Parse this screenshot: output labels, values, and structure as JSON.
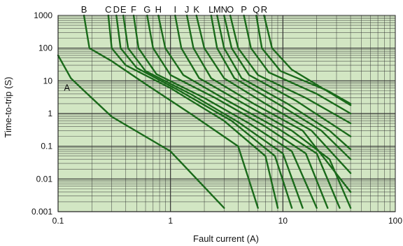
{
  "chart_data": {
    "type": "line",
    "title": "",
    "xlabel": "Fault current (A)",
    "ylabel": "Time-to-trip (S)",
    "xscale": "log",
    "yscale": "log",
    "xlim": [
      0.1,
      100
    ],
    "ylim": [
      0.001,
      1000
    ],
    "grid": true,
    "x_ticks": [
      {
        "value": 0.1,
        "label": "0.1"
      },
      {
        "value": 1,
        "label": "1"
      },
      {
        "value": 10,
        "label": "10"
      },
      {
        "value": 100,
        "label": "100"
      }
    ],
    "y_ticks": [
      {
        "value": 1000,
        "label": "1000"
      },
      {
        "value": 100,
        "label": "100"
      },
      {
        "value": 10,
        "label": "10"
      },
      {
        "value": 1,
        "label": "1"
      },
      {
        "value": 0.1,
        "label": "0.1"
      },
      {
        "value": 0.01,
        "label": "0.01"
      },
      {
        "value": 0.001,
        "label": "0.001"
      }
    ],
    "colors": {
      "plot_background": "#d2e6c3",
      "grid": "#333333",
      "curve": "#1a6a1a"
    },
    "series": [
      {
        "name": "A",
        "points": [
          [
            0.1,
            60
          ],
          [
            0.13,
            12
          ],
          [
            0.17,
            5
          ],
          [
            0.3,
            0.8
          ],
          [
            1.0,
            0.07
          ],
          [
            3.0,
            0.0013
          ]
        ]
      },
      {
        "name": "B",
        "points": [
          [
            0.17,
            1000
          ],
          [
            0.19,
            100
          ],
          [
            0.3,
            40
          ],
          [
            0.6,
            8
          ],
          [
            1.5,
            1
          ],
          [
            4.0,
            0.1
          ],
          [
            6.0,
            0.0013
          ]
        ]
      },
      {
        "name": "C",
        "points": [
          [
            0.28,
            1000
          ],
          [
            0.3,
            100
          ],
          [
            0.4,
            30
          ],
          [
            1.0,
            6
          ],
          [
            3.0,
            0.6
          ],
          [
            7.0,
            0.05
          ],
          [
            9.0,
            0.0013
          ]
        ]
      },
      {
        "name": "D",
        "points": [
          [
            0.33,
            1000
          ],
          [
            0.36,
            100
          ],
          [
            0.5,
            25
          ],
          [
            1.2,
            5
          ],
          [
            3.5,
            0.6
          ],
          [
            8.5,
            0.05
          ],
          [
            12.0,
            0.0013
          ]
        ]
      },
      {
        "name": "E",
        "points": [
          [
            0.38,
            1000
          ],
          [
            0.42,
            100
          ],
          [
            0.6,
            20
          ],
          [
            1.5,
            4
          ],
          [
            4.0,
            0.55
          ],
          [
            10.0,
            0.06
          ],
          [
            15.0,
            0.0013
          ]
        ]
      },
      {
        "name": "F",
        "points": [
          [
            0.47,
            1000
          ],
          [
            0.52,
            100
          ],
          [
            0.75,
            16
          ],
          [
            2.0,
            3
          ],
          [
            5.0,
            0.5
          ],
          [
            12.0,
            0.07
          ],
          [
            20.0,
            0.0013
          ]
        ]
      },
      {
        "name": "G",
        "points": [
          [
            0.62,
            1000
          ],
          [
            0.7,
            100
          ],
          [
            1.0,
            15
          ],
          [
            2.5,
            3
          ],
          [
            7.0,
            0.4
          ],
          [
            16.0,
            0.06
          ],
          [
            25.0,
            0.0013
          ]
        ]
      },
      {
        "name": "H",
        "points": [
          [
            0.78,
            1000
          ],
          [
            0.9,
            100
          ],
          [
            1.3,
            15
          ],
          [
            3.2,
            2.5
          ],
          [
            9.0,
            0.35
          ],
          [
            20.0,
            0.06
          ],
          [
            32.0,
            0.0013
          ]
        ]
      },
      {
        "name": "I",
        "points": [
          [
            1.1,
            1000
          ],
          [
            1.25,
            100
          ],
          [
            1.8,
            12
          ],
          [
            4.5,
            2
          ],
          [
            12.0,
            0.3
          ],
          [
            26.0,
            0.04
          ],
          [
            40.0,
            0.0013
          ]
        ]
      },
      {
        "name": "J",
        "points": [
          [
            1.4,
            1000
          ],
          [
            1.6,
            100
          ],
          [
            2.3,
            12
          ],
          [
            5.5,
            2
          ],
          [
            15.0,
            0.3
          ],
          [
            40.0,
            0.004
          ]
        ]
      },
      {
        "name": "K",
        "points": [
          [
            1.7,
            1000
          ],
          [
            2.0,
            100
          ],
          [
            3.0,
            12
          ],
          [
            7.0,
            2
          ],
          [
            18.0,
            0.3
          ],
          [
            40.0,
            0.015
          ]
        ]
      },
      {
        "name": "L",
        "points": [
          [
            2.3,
            1000
          ],
          [
            2.6,
            100
          ],
          [
            3.7,
            12
          ],
          [
            9.0,
            2
          ],
          [
            22.0,
            0.3
          ],
          [
            40.0,
            0.04
          ]
        ]
      },
      {
        "name": "M",
        "points": [
          [
            2.6,
            1000
          ],
          [
            3.0,
            100
          ],
          [
            4.3,
            12
          ],
          [
            11.0,
            2
          ],
          [
            26.0,
            0.3
          ],
          [
            40.0,
            0.08
          ]
        ]
      },
      {
        "name": "N",
        "points": [
          [
            3.0,
            1000
          ],
          [
            3.5,
            100
          ],
          [
            5.0,
            15
          ],
          [
            13.0,
            2.5
          ],
          [
            40.0,
            0.2
          ]
        ]
      },
      {
        "name": "O",
        "points": [
          [
            3.4,
            1000
          ],
          [
            4.0,
            100
          ],
          [
            6.0,
            15
          ],
          [
            16.0,
            3
          ],
          [
            40.0,
            0.5
          ]
        ]
      },
      {
        "name": "P",
        "points": [
          [
            4.5,
            1000
          ],
          [
            5.2,
            100
          ],
          [
            7.5,
            18
          ],
          [
            20.0,
            4
          ],
          [
            40.0,
            1.0
          ]
        ]
      },
      {
        "name": "Q",
        "points": [
          [
            5.8,
            1000
          ],
          [
            6.5,
            100
          ],
          [
            9.5,
            20
          ],
          [
            25.0,
            5
          ],
          [
            40.0,
            2.0
          ]
        ]
      },
      {
        "name": "R",
        "points": [
          [
            6.8,
            1000
          ],
          [
            8.0,
            100
          ],
          [
            12.0,
            22
          ],
          [
            40.0,
            1.8
          ]
        ]
      }
    ],
    "curve_labels": [
      {
        "text": "B",
        "x": 0.17,
        "position": "top"
      },
      {
        "text": "C",
        "x": 0.28,
        "position": "top"
      },
      {
        "text": "D",
        "x": 0.33,
        "position": "top"
      },
      {
        "text": "E",
        "x": 0.38,
        "position": "top"
      },
      {
        "text": "F",
        "x": 0.47,
        "position": "top"
      },
      {
        "text": "G",
        "x": 0.62,
        "position": "top"
      },
      {
        "text": "H",
        "x": 0.78,
        "position": "top"
      },
      {
        "text": "I",
        "x": 1.1,
        "position": "top"
      },
      {
        "text": "J",
        "x": 1.4,
        "position": "top"
      },
      {
        "text": "K",
        "x": 1.7,
        "position": "top"
      },
      {
        "text": "L",
        "x": 2.3,
        "position": "top"
      },
      {
        "text": "M",
        "x": 2.6,
        "position": "top"
      },
      {
        "text": "N",
        "x": 3.0,
        "position": "top"
      },
      {
        "text": "O",
        "x": 3.4,
        "position": "top"
      },
      {
        "text": "P",
        "x": 4.5,
        "position": "top"
      },
      {
        "text": "Q",
        "x": 5.8,
        "position": "top"
      },
      {
        "text": "R",
        "x": 6.8,
        "position": "top"
      },
      {
        "text": "A",
        "x": 0.12,
        "y": 5,
        "position": "inside"
      }
    ]
  }
}
